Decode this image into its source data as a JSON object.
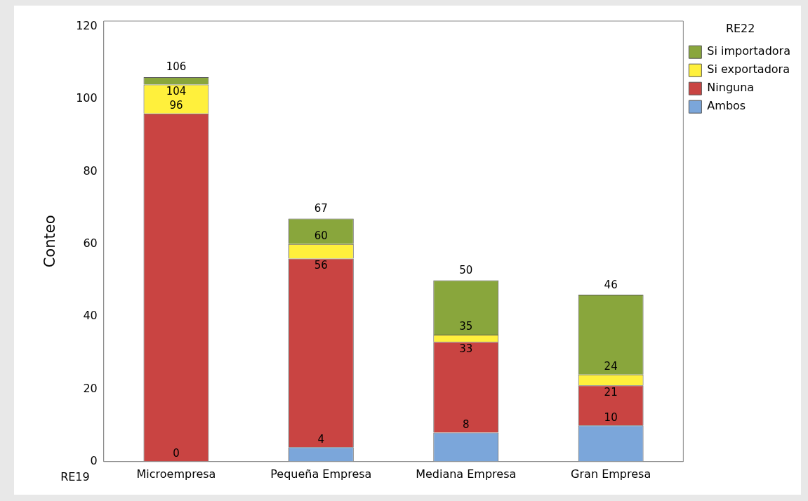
{
  "chart_data": {
    "type": "bar",
    "stacked": true,
    "xlabel": "RE19",
    "ylabel": "Conteo",
    "legend_title": "RE22",
    "legend": "top right",
    "grid": false,
    "categories": [
      "Microempresa",
      "Pequeña Empresa",
      "Mediana Empresa",
      "Gran Empresa"
    ],
    "series": [
      {
        "name": "Ambos",
        "color": "#7ba6da",
        "values": [
          0,
          4,
          8,
          10
        ]
      },
      {
        "name": "Ninguna",
        "color": "#c94442",
        "values": [
          96,
          52,
          25,
          11
        ]
      },
      {
        "name": "Si exportadora",
        "color": "#fff03c",
        "values": [
          8,
          4,
          2,
          3
        ]
      },
      {
        "name": "Si importadora",
        "color": "#89a63c",
        "values": [
          2,
          7,
          15,
          22
        ]
      }
    ],
    "annotations": [
      {
        "text": "0",
        "x": "Microempresa",
        "y": 0
      },
      {
        "text": "96",
        "x": "Microempresa",
        "y": 96
      },
      {
        "text": "104",
        "x": "Microempresa",
        "y": 104
      },
      {
        "text": "4",
        "x": "Pequeña Empresa",
        "y": 4
      },
      {
        "text": "56",
        "x": "Pequeña Empresa",
        "y": 56
      },
      {
        "text": "60",
        "x": "Pequeña Empresa",
        "y": 60
      },
      {
        "text": "8",
        "x": "Mediana Empresa",
        "y": 8
      },
      {
        "text": "33",
        "x": "Mediana Empresa",
        "y": 33
      },
      {
        "text": "35",
        "x": "Mediana Empresa",
        "y": 35
      },
      {
        "text": "10",
        "x": "Gran Empresa",
        "y": 10
      },
      {
        "text": "21",
        "x": "Gran Empresa",
        "y": 21
      },
      {
        "text": "24",
        "x": "Gran Empresa",
        "y": 24
      }
    ],
    "totals": [
      "106",
      "67",
      "50",
      "46"
    ],
    "ylim": [
      0,
      121.5
    ],
    "yticks": [
      0,
      20,
      40,
      60,
      80,
      100,
      120
    ]
  }
}
